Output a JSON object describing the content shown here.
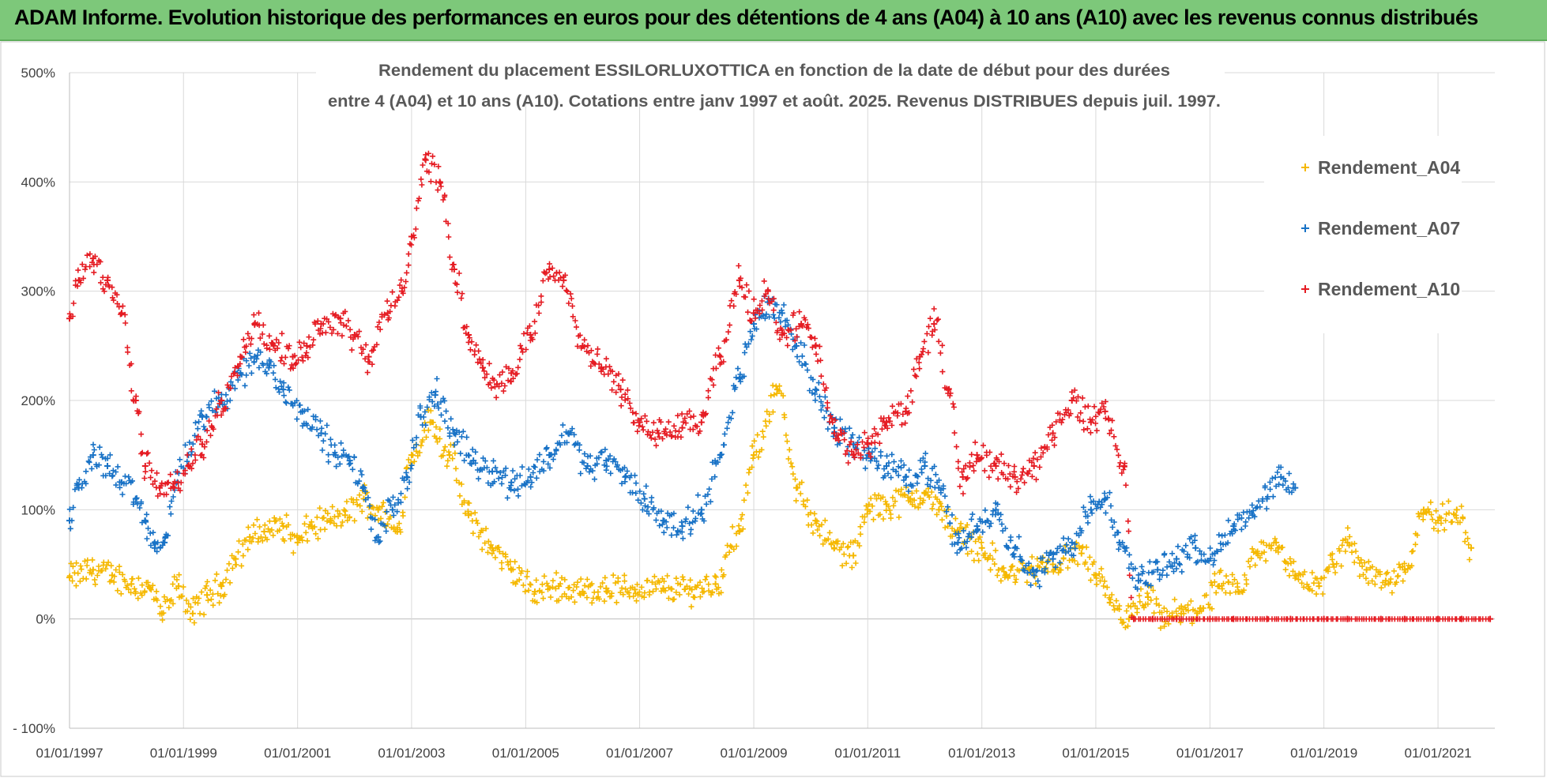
{
  "banner": {
    "title": "ADAM Informe. Evolution historique des performances en euros pour des détentions de 4 ans (A04) à 10 ans (A10) avec les revenus connus distribués"
  },
  "chart_data": {
    "type": "scatter",
    "title_lines": [
      "Rendement du placement ESSILORLUXOTTICA en fonction de la date de début pour des durées",
      "entre 4 (A04) et 10 ans (A10).  Cotations entre janv 1997 et août. 2025. Revenus DISTRIBUES depuis juil. 1997."
    ],
    "xlabel": "",
    "ylabel": "",
    "x_range": [
      "1997-01-01",
      "2021-12-31"
    ],
    "y_range": [
      -100,
      500
    ],
    "y_ticks": [
      -100,
      0,
      100,
      200,
      300,
      400,
      500
    ],
    "y_tick_labels": [
      "- 100%",
      "0%",
      "100%",
      "200%",
      "300%",
      "400%",
      "500%"
    ],
    "x_ticks": [
      "1997-01-01",
      "1999-01-01",
      "2001-01-01",
      "2003-01-01",
      "2005-01-01",
      "2007-01-01",
      "2009-01-01",
      "2011-01-01",
      "2013-01-01",
      "2015-01-01",
      "2017-01-01",
      "2019-01-01",
      "2021-01-01"
    ],
    "x_tick_labels": [
      "01/01/1997",
      "01/01/1999",
      "01/01/2001",
      "01/01/2003",
      "01/01/2005",
      "01/01/2007",
      "01/01/2009",
      "01/01/2011",
      "01/01/2013",
      "01/01/2015",
      "01/01/2017",
      "01/01/2019",
      "01/01/2021"
    ],
    "grid": {
      "horizontal": true,
      "vertical": true
    },
    "legend_position": "right",
    "marker": "+",
    "series": [
      {
        "name": "Rendement_A04",
        "color": "#f5b800",
        "x": [
          "1997-01-01",
          "1997-06-01",
          "1997-10-01",
          "1998-02-01",
          "1998-06-01",
          "1998-08-15",
          "1998-12-01",
          "1999-03-01",
          "1999-06-01",
          "1999-09-01",
          "1999-12-01",
          "2000-03-01",
          "2000-06-01",
          "2000-10-01",
          "2001-01-01",
          "2001-04-01",
          "2001-08-01",
          "2001-11-01",
          "2002-03-01",
          "2002-06-01",
          "2002-10-01",
          "2003-01-01",
          "2003-05-01",
          "2003-09-01",
          "2004-01-01",
          "2004-06-01",
          "2004-10-01",
          "2005-03-01",
          "2005-08-01",
          "2006-01-01",
          "2006-06-01",
          "2006-12-01",
          "2007-06-01",
          "2007-12-01",
          "2008-05-01",
          "2008-10-01",
          "2009-01-01",
          "2009-06-01",
          "2009-10-01",
          "2010-02-01",
          "2010-06-01",
          "2010-10-01",
          "2011-01-01",
          "2011-05-01",
          "2011-10-01",
          "2012-01-01",
          "2012-04-01",
          "2012-08-01",
          "2013-01-01",
          "2013-06-01",
          "2013-11-01",
          "2014-04-01",
          "2014-10-01",
          "2015-01-01",
          "2015-04-01",
          "2015-08-01",
          "2015-12-01",
          "2016-03-01",
          "2016-07-01",
          "2016-11-01",
          "2017-03-01",
          "2017-07-01",
          "2017-11-01",
          "2018-03-01",
          "2018-07-01",
          "2018-12-01",
          "2019-03-01",
          "2019-06-01",
          "2019-10-01",
          "2020-02-01",
          "2020-06-01",
          "2020-10-01",
          "2021-01-01",
          "2021-05-01",
          "2021-08-01"
        ],
        "y": [
          38,
          45,
          40,
          32,
          28,
          5,
          30,
          5,
          22,
          30,
          55,
          75,
          80,
          85,
          70,
          85,
          90,
          95,
          110,
          100,
          80,
          150,
          180,
          150,
          95,
          65,
          45,
          25,
          30,
          25,
          28,
          27,
          28,
          27,
          32,
          80,
          150,
          210,
          120,
          90,
          65,
          58,
          100,
          105,
          110,
          115,
          100,
          80,
          65,
          40,
          45,
          50,
          60,
          40,
          15,
          0,
          20,
          0,
          5,
          10,
          30,
          25,
          60,
          70,
          40,
          30,
          50,
          70,
          45,
          35,
          45,
          100,
          90,
          100,
          65
        ]
      },
      {
        "name": "Rendement_A07",
        "color": "#1872c6",
        "x": [
          "1997-01-01",
          "1997-03-01",
          "1997-06-01",
          "1997-09-01",
          "1997-12-01",
          "1998-03-01",
          "1998-05-01",
          "1998-07-01",
          "1998-09-01",
          "1998-11-01",
          "1999-02-01",
          "1999-05-01",
          "1999-09-01",
          "2000-01-01",
          "2000-04-01",
          "2000-07-01",
          "2000-10-01",
          "2001-02-01",
          "2001-06-01",
          "2001-09-01",
          "2001-12-01",
          "2002-03-01",
          "2002-06-01",
          "2002-09-01",
          "2002-12-01",
          "2003-03-01",
          "2003-06-01",
          "2003-10-01",
          "2004-02-01",
          "2004-06-01",
          "2004-10-01",
          "2005-02-01",
          "2005-06-01",
          "2005-10-01",
          "2006-02-01",
          "2006-06-01",
          "2006-10-01",
          "2007-02-01",
          "2007-06-01",
          "2007-10-01",
          "2008-02-01",
          "2008-06-01",
          "2008-10-01",
          "2009-01-01",
          "2009-04-01",
          "2009-07-01",
          "2009-10-01",
          "2010-02-01",
          "2010-06-01",
          "2010-10-01",
          "2011-01-01",
          "2011-05-01",
          "2011-09-01",
          "2012-01-01",
          "2012-04-01",
          "2012-08-01",
          "2012-12-01",
          "2013-04-01",
          "2013-08-01",
          "2013-12-01",
          "2014-04-01",
          "2014-08-01",
          "2014-12-01",
          "2015-03-01",
          "2015-06-01",
          "2015-10-01",
          "2016-02-01",
          "2016-06-01",
          "2016-10-01",
          "2017-02-01",
          "2017-06-01",
          "2017-10-01",
          "2018-01-01",
          "2018-04-01",
          "2018-07-01"
        ],
        "y": [
          90,
          120,
          150,
          140,
          125,
          110,
          90,
          65,
          70,
          120,
          150,
          185,
          200,
          225,
          240,
          230,
          210,
          190,
          170,
          150,
          145,
          120,
          75,
          100,
          130,
          185,
          205,
          170,
          145,
          135,
          125,
          130,
          150,
          170,
          140,
          145,
          130,
          110,
          90,
          85,
          100,
          150,
          220,
          270,
          290,
          280,
          250,
          210,
          175,
          160,
          150,
          140,
          130,
          140,
          120,
          70,
          85,
          100,
          65,
          40,
          55,
          70,
          100,
          110,
          70,
          35,
          45,
          55,
          65,
          60,
          85,
          95,
          110,
          130,
          120
        ]
      },
      {
        "name": "Rendement_A10",
        "color": "#e51c23",
        "x": [
          "1997-01-01",
          "1997-03-01",
          "1997-06-01",
          "1997-09-01",
          "1997-12-01",
          "1998-03-01",
          "1998-05-01",
          "1998-08-01",
          "1998-11-01",
          "1999-02-01",
          "1999-05-01",
          "1999-09-01",
          "2000-01-01",
          "2000-04-01",
          "2000-08-01",
          "2000-12-01",
          "2001-03-01",
          "2001-06-01",
          "2001-10-01",
          "2002-01-01",
          "2002-04-01",
          "2002-08-01",
          "2002-11-01",
          "2003-01-01",
          "2003-04-01",
          "2003-07-01",
          "2003-10-01",
          "2004-01-01",
          "2004-04-01",
          "2004-07-01",
          "2004-10-01",
          "2005-02-01",
          "2005-06-01",
          "2005-09-01",
          "2006-01-01",
          "2006-05-01",
          "2006-09-01",
          "2007-01-01",
          "2007-05-01",
          "2007-10-01",
          "2008-02-01",
          "2008-06-01",
          "2008-10-01",
          "2009-01-01",
          "2009-04-01",
          "2009-07-01",
          "2009-11-01",
          "2010-02-01",
          "2010-06-01",
          "2010-10-01",
          "2011-01-01",
          "2011-05-01",
          "2011-09-01",
          "2011-12-01",
          "2012-03-01",
          "2012-06-01",
          "2012-09-01",
          "2012-12-01",
          "2013-04-01",
          "2013-08-01",
          "2013-12-01",
          "2014-04-01",
          "2014-08-01",
          "2014-12-01",
          "2015-03-01",
          "2015-07-01",
          "2015-09-01",
          "2016-01-01",
          "2016-06-01",
          "2017-01-01",
          "2017-06-01",
          "2018-01-01",
          "2018-06-01",
          "2019-01-01",
          "2019-06-01",
          "2020-01-01",
          "2020-06-01",
          "2021-01-01",
          "2021-06-01",
          "2021-12-01"
        ],
        "y": [
          275,
          310,
          330,
          310,
          280,
          200,
          140,
          120,
          120,
          140,
          160,
          200,
          240,
          270,
          250,
          240,
          250,
          270,
          275,
          260,
          240,
          280,
          300,
          350,
          420,
          400,
          320,
          260,
          230,
          215,
          225,
          260,
          320,
          310,
          250,
          230,
          210,
          180,
          170,
          175,
          180,
          240,
          310,
          280,
          300,
          260,
          270,
          250,
          170,
          150,
          160,
          180,
          190,
          240,
          270,
          210,
          130,
          150,
          140,
          130,
          140,
          170,
          200,
          180,
          190,
          140,
          0,
          0,
          0,
          0,
          0,
          0,
          0,
          0,
          0,
          0,
          0,
          0,
          0,
          0
        ]
      }
    ]
  }
}
